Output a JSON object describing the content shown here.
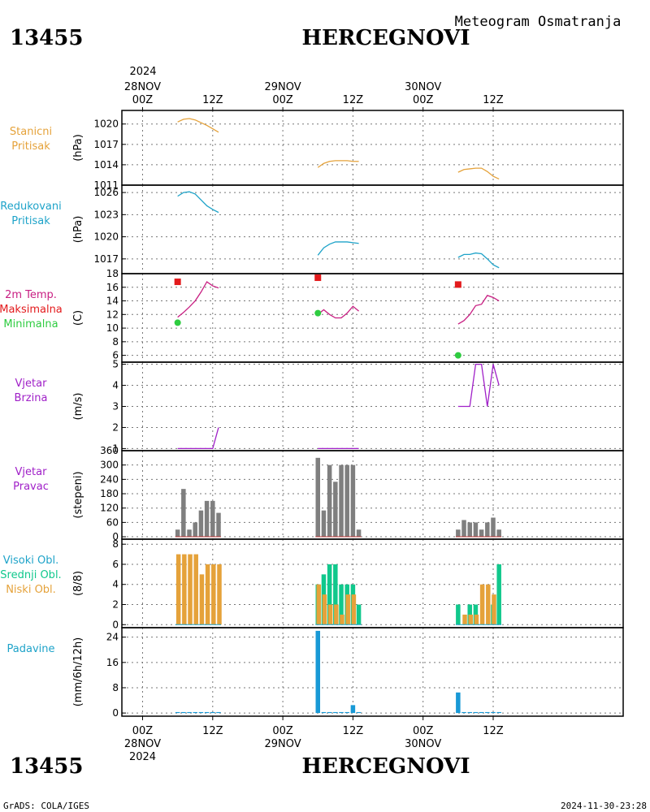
{
  "header": {
    "station_id": "13455",
    "station_name": "HERCEGNOVI",
    "subtitle": "Meteogram Osmatranja",
    "year_top": "2024",
    "footer_left": "GrADS: COLA/IGES",
    "footer_right": "2024-11-30-23:28"
  },
  "time_axis": {
    "top": [
      {
        "hour": 0,
        "lines": [
          "28NOV",
          "00Z"
        ]
      },
      {
        "hour": 12,
        "lines": [
          "12Z"
        ]
      },
      {
        "hour": 24,
        "lines": [
          "29NOV",
          "00Z"
        ]
      },
      {
        "hour": 36,
        "lines": [
          "12Z"
        ]
      },
      {
        "hour": 48,
        "lines": [
          "30NOV",
          "00Z"
        ]
      },
      {
        "hour": 60,
        "lines": [
          "12Z"
        ]
      }
    ],
    "bottom": [
      {
        "hour": 0,
        "lines": [
          "00Z",
          "28NOV",
          "2024"
        ]
      },
      {
        "hour": 12,
        "lines": [
          "12Z"
        ]
      },
      {
        "hour": 24,
        "lines": [
          "00Z",
          "29NOV"
        ]
      },
      {
        "hour": 36,
        "lines": [
          "12Z"
        ]
      },
      {
        "hour": 48,
        "lines": [
          "00Z",
          "30NOV"
        ]
      },
      {
        "hour": 60,
        "lines": [
          "12Z"
        ]
      }
    ]
  },
  "colors": {
    "orange": "#e5a23a",
    "teal": "#1ea3c9",
    "magenta": "#c81e82",
    "red": "#e31a1c",
    "green": "#2ecc40",
    "purple": "#a020c8",
    "gray": "#7f7f7f",
    "darkred": "#b33",
    "cloudgreen": "#10c88c",
    "cloudorange": "#e5a23a",
    "blue": "#1899d6"
  },
  "chart_data": [
    {
      "id": "stanicni",
      "type": "line",
      "labels": [
        "Stanicni",
        "Pritisak"
      ],
      "label_color": "orange",
      "ylabel": "(hPa)",
      "ylim": [
        1011,
        1022
      ],
      "yticks": [
        1011,
        1014,
        1017,
        1020
      ],
      "series": [
        {
          "color": "orange",
          "segments": [
            {
              "x": [
                6,
                7,
                8,
                9,
                10,
                11,
                12,
                13
              ],
              "y": [
                1020.3,
                1020.7,
                1020.8,
                1020.6,
                1020.2,
                1019.8,
                1019.3,
                1018.8
              ]
            },
            {
              "x": [
                30,
                31,
                32,
                33,
                34,
                35,
                36,
                37
              ],
              "y": [
                1013.6,
                1014.2,
                1014.5,
                1014.6,
                1014.6,
                1014.6,
                1014.5,
                1014.5
              ]
            },
            {
              "x": [
                54,
                55,
                56,
                57,
                58,
                59,
                60,
                61
              ],
              "y": [
                1012.9,
                1013.3,
                1013.4,
                1013.5,
                1013.5,
                1013.0,
                1012.3,
                1011.9
              ]
            }
          ]
        }
      ]
    },
    {
      "id": "redukovani",
      "type": "line",
      "labels": [
        "Redukovani",
        "Pritisak"
      ],
      "label_color": "teal",
      "ylabel": "(hPa)",
      "ylim": [
        1015,
        1027
      ],
      "yticks": [
        1017,
        1020,
        1023,
        1026
      ],
      "series": [
        {
          "color": "teal",
          "segments": [
            {
              "x": [
                6,
                7,
                8,
                9,
                10,
                11,
                12,
                13
              ],
              "y": [
                1025.5,
                1026.0,
                1026.1,
                1025.8,
                1025.0,
                1024.2,
                1023.7,
                1023.3
              ]
            },
            {
              "x": [
                30,
                31,
                32,
                33,
                34,
                35,
                36,
                37
              ],
              "y": [
                1017.5,
                1018.5,
                1019.0,
                1019.3,
                1019.3,
                1019.3,
                1019.2,
                1019.1
              ]
            },
            {
              "x": [
                54,
                55,
                56,
                57,
                58,
                59,
                60,
                61
              ],
              "y": [
                1017.2,
                1017.6,
                1017.6,
                1017.8,
                1017.7,
                1017.0,
                1016.2,
                1015.8
              ]
            }
          ]
        }
      ]
    },
    {
      "id": "temp",
      "type": "line",
      "labels": [
        "2m Temp.",
        "Maksimalna",
        "Minimalna"
      ],
      "label_colors": [
        "magenta",
        "red",
        "green"
      ],
      "ylabel": "(C)",
      "ylim": [
        5,
        18
      ],
      "yticks": [
        6,
        8,
        10,
        12,
        14,
        16,
        18
      ],
      "series": [
        {
          "color": "magenta",
          "segments": [
            {
              "x": [
                6,
                7,
                8,
                9,
                10,
                11,
                12,
                13
              ],
              "y": [
                11.6,
                12.3,
                13.1,
                14.0,
                15.3,
                16.8,
                16.2,
                15.9
              ]
            },
            {
              "x": [
                30,
                31,
                32,
                33,
                34,
                35,
                36,
                37
              ],
              "y": [
                12.0,
                12.7,
                12.0,
                11.5,
                11.5,
                12.2,
                13.2,
                12.5
              ]
            },
            {
              "x": [
                54,
                55,
                56,
                57,
                58,
                59,
                60,
                61
              ],
              "y": [
                10.6,
                11.1,
                12.0,
                13.3,
                13.5,
                14.8,
                14.5,
                14.0
              ]
            }
          ]
        }
      ],
      "markers": [
        {
          "kind": "square",
          "color": "red",
          "points": [
            [
              6,
              16.8
            ],
            [
              30,
              17.4
            ],
            [
              54,
              16.4
            ]
          ]
        },
        {
          "kind": "circle",
          "color": "green",
          "points": [
            [
              6,
              10.8
            ],
            [
              30,
              12.2
            ],
            [
              54,
              6.0
            ]
          ]
        }
      ]
    },
    {
      "id": "vjetar_brzina",
      "type": "line",
      "labels": [
        "Vjetar",
        "Brzina"
      ],
      "label_color": "purple",
      "ylabel": "(m/s)",
      "ylim": [
        0.9,
        5.1
      ],
      "yticks": [
        1,
        2,
        3,
        4,
        5
      ],
      "series": [
        {
          "color": "purple",
          "segments": [
            {
              "x": [
                6,
                7,
                8,
                9,
                10,
                11,
                12,
                13
              ],
              "y": [
                1,
                1,
                1,
                1,
                1,
                1,
                1,
                2
              ]
            },
            {
              "x": [
                30,
                31,
                32,
                33,
                34,
                35,
                36,
                37
              ],
              "y": [
                1,
                1,
                1,
                1,
                1,
                1,
                1,
                1
              ]
            },
            {
              "x": [
                54,
                55,
                56,
                57,
                58,
                59,
                60,
                61
              ],
              "y": [
                3,
                3,
                3,
                5,
                5,
                3,
                5,
                4
              ]
            }
          ]
        }
      ]
    },
    {
      "id": "vjetar_pravac",
      "type": "bar",
      "labels": [
        "Vjetar",
        "Pravac"
      ],
      "label_color": "purple",
      "ylabel": "(stepeni)",
      "ylim": [
        -10,
        360
      ],
      "yticks": [
        0,
        60,
        120,
        180,
        240,
        300,
        360
      ],
      "bar_color": "gray",
      "baseline_color": "darkred",
      "groups": [
        {
          "x": [
            6,
            7,
            8,
            9,
            10,
            11,
            12,
            13
          ],
          "values": [
            30,
            200,
            30,
            60,
            110,
            150,
            150,
            100
          ]
        },
        {
          "x": [
            30,
            31,
            32,
            33,
            34,
            35,
            36,
            37
          ],
          "values": [
            330,
            110,
            300,
            230,
            300,
            300,
            300,
            30
          ]
        },
        {
          "x": [
            54,
            55,
            56,
            57,
            58,
            59,
            60,
            61
          ],
          "values": [
            30,
            70,
            60,
            60,
            30,
            60,
            80,
            30
          ]
        }
      ]
    },
    {
      "id": "oblaci",
      "type": "bar",
      "labels": [
        "Visoki Obl.",
        "Srednji Obl.",
        "Niski Obl."
      ],
      "label_color": "teal",
      "label_colors": [
        "teal",
        "cloudgreen",
        "cloudorange"
      ],
      "ylabel": "(8/8)",
      "ylim": [
        -0.3,
        8.5
      ],
      "yticks": [
        0,
        2,
        4,
        6,
        8
      ],
      "series": [
        {
          "name": "Srednji Obl.",
          "color": "cloudgreen",
          "groups": [
            {
              "x": [
                6,
                7,
                8,
                9,
                10,
                11,
                12,
                13
              ],
              "values": [
                0,
                0,
                0,
                0,
                0,
                0,
                0,
                0
              ]
            },
            {
              "x": [
                30,
                31,
                32,
                33,
                34,
                35,
                36,
                37
              ],
              "values": [
                4,
                5,
                6,
                6,
                4,
                4,
                4,
                2
              ]
            },
            {
              "x": [
                54,
                55,
                56,
                57,
                58,
                59,
                60,
                61
              ],
              "values": [
                2,
                0,
                2,
                2,
                0,
                0,
                2,
                6
              ]
            }
          ]
        },
        {
          "name": "Niski Obl.",
          "color": "cloudorange",
          "groups": [
            {
              "x": [
                6,
                7,
                8,
                9,
                10,
                11,
                12,
                13
              ],
              "values": [
                7,
                7,
                7,
                7,
                5,
                6,
                6,
                6
              ]
            },
            {
              "x": [
                30,
                31,
                32,
                33,
                34,
                35,
                36,
                37
              ],
              "values": [
                4,
                3,
                2,
                2,
                1,
                3,
                3,
                0
              ]
            },
            {
              "x": [
                54,
                55,
                56,
                57,
                58,
                59,
                60,
                61
              ],
              "values": [
                0,
                1,
                1,
                1,
                4,
                4,
                3,
                0
              ]
            }
          ]
        }
      ]
    },
    {
      "id": "padavine",
      "type": "bar",
      "labels": [
        "Padavine"
      ],
      "label_color": "teal",
      "ylabel": "(mm/6h/12h)",
      "ylim": [
        -1,
        27
      ],
      "yticks": [
        0,
        8,
        16,
        24
      ],
      "bar_color": "blue",
      "groups": [
        {
          "x": [
            6,
            7,
            8,
            9,
            10,
            11,
            12,
            13
          ],
          "values": [
            0.3,
            0.3,
            0.3,
            0.3,
            0.3,
            0.3,
            0.3,
            0.3
          ]
        },
        {
          "x": [
            30,
            31,
            32,
            33,
            34,
            35,
            36,
            37
          ],
          "values": [
            26,
            0.3,
            0.3,
            0.3,
            0.3,
            0.3,
            2.5,
            0.3
          ]
        },
        {
          "x": [
            54,
            55,
            56,
            57,
            58,
            59,
            60,
            61
          ],
          "values": [
            6.5,
            0.3,
            0.3,
            0.3,
            0.3,
            0.3,
            0.3,
            0.3
          ]
        }
      ]
    }
  ]
}
